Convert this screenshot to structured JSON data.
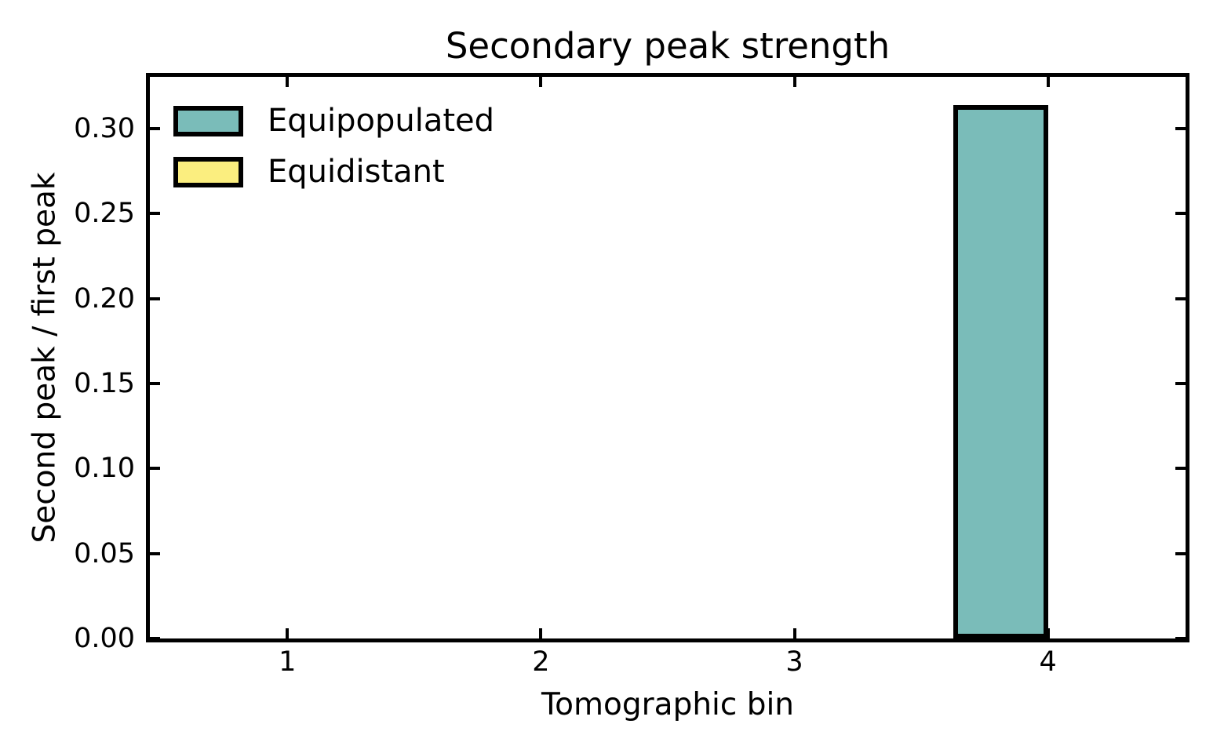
{
  "figure": {
    "title": "Secondary peak strength",
    "xlabel": "Tomographic bin",
    "ylabel": "Second peak / first peak"
  },
  "legend": {
    "items": [
      {
        "label": "Equipopulated",
        "color": "#7abcb9"
      },
      {
        "label": "Equidistant",
        "color": "#fbee7f"
      }
    ]
  },
  "chart_data": {
    "type": "bar",
    "title": "Secondary peak strength",
    "xlabel": "Tomographic bin",
    "ylabel": "Second peak / first peak",
    "categories": [
      1,
      2,
      3,
      4
    ],
    "series": [
      {
        "name": "Equipopulated",
        "color": "#7abcb9",
        "values": [
          0,
          0,
          0,
          0.314
        ]
      },
      {
        "name": "Equidistant",
        "color": "#fbee7f",
        "values": [
          0,
          0,
          0,
          0
        ]
      }
    ],
    "bar_width": 0.375,
    "bar_edge_color": "#000000",
    "xticks": [
      1,
      2,
      3,
      4
    ],
    "yticks": [
      0.0,
      0.05,
      0.1,
      0.15,
      0.2,
      0.25,
      0.3
    ],
    "xlim": [
      0.4575,
      4.5425
    ],
    "ylim": [
      0,
      0.3305
    ],
    "grid": false,
    "tick_direction": "in",
    "ticks_on_all_spines": true,
    "legend_position": "upper left",
    "legend_frame": false
  }
}
